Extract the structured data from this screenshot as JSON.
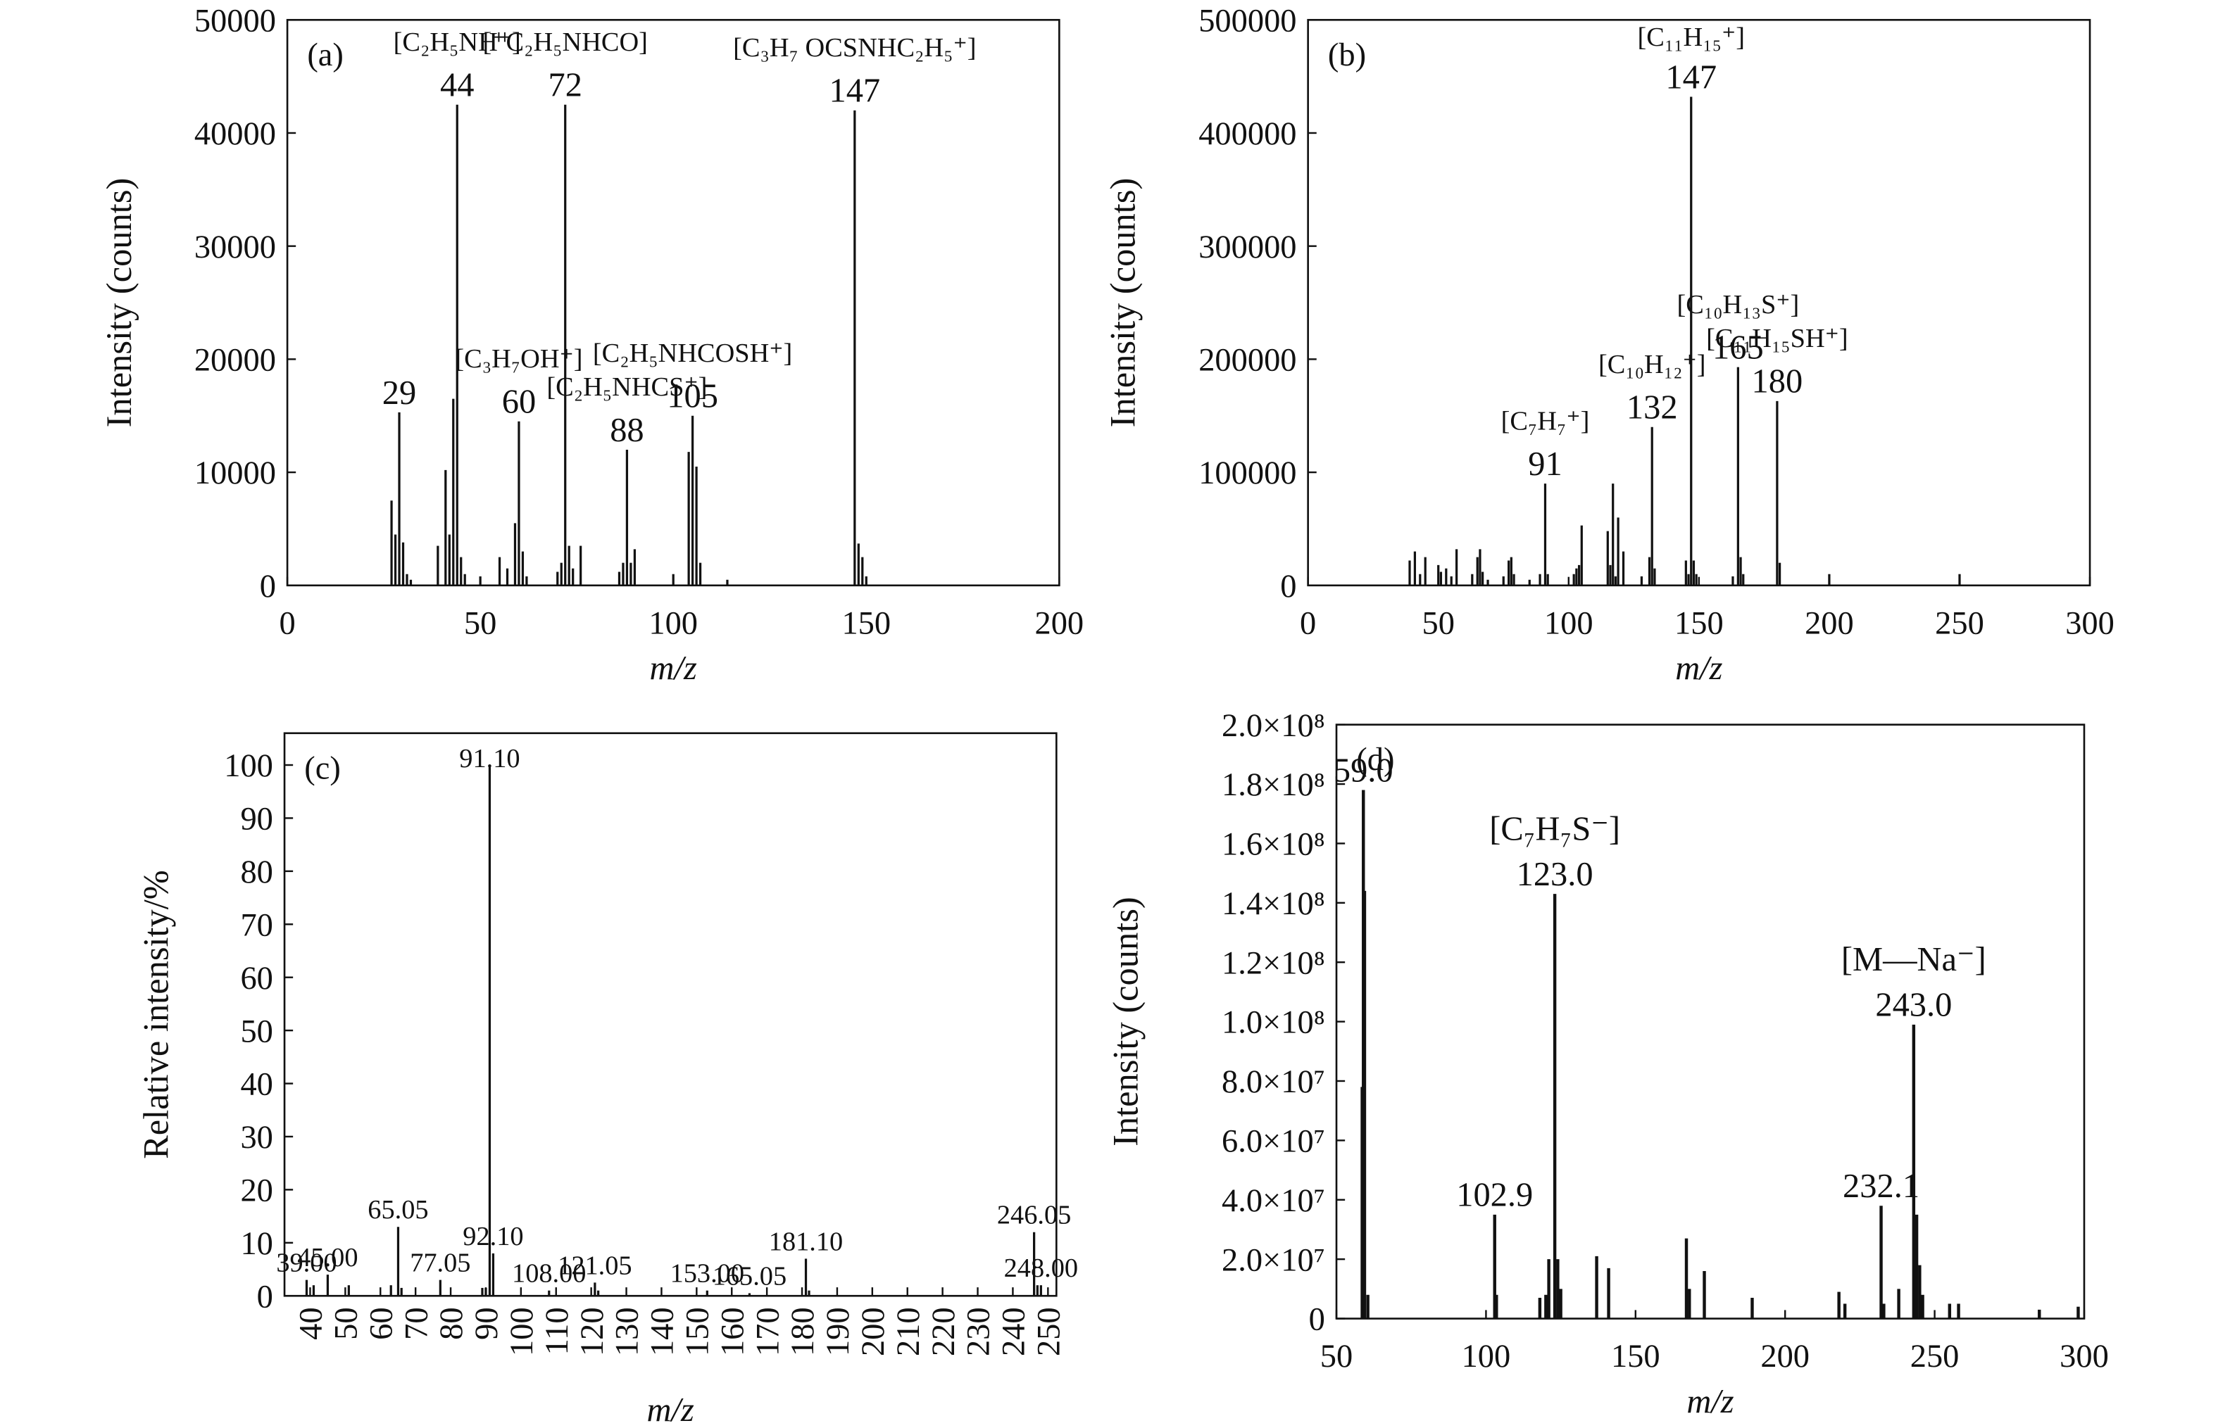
{
  "chart_data": [
    {
      "type": "bar",
      "panel": "(a)",
      "xlabel": "m/z",
      "ylabel": "Intensity (counts)",
      "xlim": [
        0,
        200
      ],
      "xticks": [
        0,
        50,
        100,
        150,
        200
      ],
      "ylim": [
        0,
        50000
      ],
      "yticks": [
        0,
        10000,
        20000,
        30000,
        40000,
        50000
      ],
      "color": "#111111",
      "x": [
        27,
        28,
        29,
        30,
        31,
        32,
        39,
        41,
        42,
        43,
        44,
        45,
        46,
        50,
        55,
        57,
        59,
        60,
        61,
        62,
        70,
        71,
        72,
        73,
        74,
        76,
        86,
        87,
        88,
        89,
        90,
        100,
        104,
        105,
        106,
        107,
        114,
        147,
        148,
        149,
        150
      ],
      "values": [
        7500,
        4500,
        15300,
        3800,
        1000,
        500,
        3500,
        10200,
        4500,
        16500,
        42500,
        2500,
        1000,
        800,
        2500,
        1500,
        5500,
        14500,
        3000,
        800,
        1200,
        2000,
        42500,
        3500,
        1500,
        3500,
        1200,
        2000,
        12000,
        2000,
        3200,
        1000,
        11800,
        15000,
        10500,
        2000,
        500,
        42000,
        3700,
        2500,
        800
      ],
      "annotations": [
        {
          "x": 29,
          "label": "29"
        },
        {
          "x": 44,
          "label": "44",
          "ion": "[C₂H₅NH⁺]"
        },
        {
          "x": 60,
          "label": "60",
          "ion": "[C₃H₇OH⁺]"
        },
        {
          "x": 72,
          "label": "72",
          "ion": "[⁺C₂H₅NHCO]"
        },
        {
          "x": 88,
          "label": "88",
          "ion": "[C₂H₅NHCS⁺]"
        },
        {
          "x": 105,
          "label": "105",
          "ion": "[C₂H₅NHCOSH⁺]"
        },
        {
          "x": 147,
          "label": "147",
          "ion": "[C₃H₇ OCSNHC₂H₅⁺]"
        }
      ]
    },
    {
      "type": "bar",
      "panel": "(b)",
      "xlabel": "m/z",
      "ylabel": "Intensity (counts)",
      "xlim": [
        0,
        300
      ],
      "xticks": [
        0,
        50,
        100,
        150,
        200,
        250,
        300
      ],
      "ylim": [
        0,
        500000
      ],
      "yticks": [
        0,
        100000,
        200000,
        300000,
        400000,
        500000
      ],
      "color": "#111111",
      "x": [
        39,
        41,
        43,
        45,
        50,
        51,
        53,
        55,
        57,
        63,
        65,
        66,
        67,
        69,
        75,
        77,
        78,
        79,
        85,
        89,
        91,
        92,
        102,
        103,
        104,
        105,
        115,
        116,
        117,
        118,
        119,
        121,
        128,
        131,
        132,
        133,
        145,
        146,
        147,
        148,
        149,
        163,
        165,
        166,
        167,
        180,
        181,
        200,
        250
      ],
      "values": [
        22000,
        30000,
        10000,
        25000,
        18000,
        12000,
        15000,
        8000,
        32000,
        10000,
        25000,
        32000,
        12000,
        5000,
        8000,
        22000,
        25000,
        10000,
        5000,
        10000,
        90000,
        10000,
        10000,
        15000,
        18000,
        53000,
        48000,
        18000,
        90000,
        8000,
        60000,
        30000,
        8000,
        25000,
        140000,
        15000,
        22000,
        10000,
        432000,
        22000,
        10000,
        8000,
        193000,
        25000,
        10000,
        163000,
        20000,
        10000,
        10000
      ],
      "annotations": [
        {
          "x": 91,
          "label": "91",
          "ion": "[C₇H₇⁺]"
        },
        {
          "x": 132,
          "label": "132",
          "ion": "[C₁₀H₁₂⁺]"
        },
        {
          "x": 147,
          "label": "147",
          "ion": "[C₁₁H₁₅⁺]"
        },
        {
          "x": 165,
          "label": "165",
          "ion": "[C₁₀H₁₃S⁺]"
        },
        {
          "x": 180,
          "label": "180",
          "ion": "[C₁₁H₁₅SH⁺]"
        }
      ]
    },
    {
      "type": "bar",
      "panel": "(c)",
      "xlabel": "m/z",
      "ylabel": "Relative intensity/%",
      "xlim": [
        32.7,
        252.4
      ],
      "xticks": [
        40,
        50,
        60,
        70,
        80,
        90,
        100,
        110,
        120,
        130,
        140,
        150,
        160,
        170,
        180,
        190,
        200,
        210,
        220,
        230,
        240,
        250
      ],
      "xtick_rotation": 90,
      "ylim": [
        0,
        106
      ],
      "yticks": [
        0,
        10,
        20,
        30,
        40,
        50,
        60,
        70,
        80,
        90,
        100
      ],
      "color": "#111111",
      "x": [
        39,
        41,
        45,
        51,
        63,
        65.05,
        66,
        77.05,
        89,
        90,
        91.1,
        92.1,
        108,
        121.05,
        122,
        153,
        165.05,
        181.1,
        182,
        246.05,
        247,
        248
      ],
      "values": [
        3,
        2,
        4,
        2,
        2,
        13,
        1.5,
        3,
        1.5,
        1.5,
        100,
        8,
        1,
        2.5,
        1,
        1,
        0.5,
        7,
        1,
        12,
        2,
        2
      ],
      "annotations": [
        {
          "x": 39,
          "label": "39.00"
        },
        {
          "x": 45,
          "label": "45.00"
        },
        {
          "x": 65.05,
          "label": "65.05"
        },
        {
          "x": 77.05,
          "label": "77.05"
        },
        {
          "x": 91.1,
          "label": "91.10"
        },
        {
          "x": 92.1,
          "label": "92.10"
        },
        {
          "x": 108,
          "label": "108.00"
        },
        {
          "x": 121.05,
          "label": "121.05"
        },
        {
          "x": 153,
          "label": "153.00"
        },
        {
          "x": 165.05,
          "label": "165.05"
        },
        {
          "x": 181.1,
          "label": "181.10"
        },
        {
          "x": 246.05,
          "label": "246.05"
        },
        {
          "x": 248,
          "label": "248.00"
        }
      ]
    },
    {
      "type": "bar",
      "panel": "(d)",
      "xlabel": "m/z",
      "ylabel": "Intensity (counts)",
      "xlim": [
        50,
        300
      ],
      "xticks": [
        50,
        100,
        150,
        200,
        250,
        300
      ],
      "ylim": [
        0,
        200000000
      ],
      "yticks": [
        0,
        {
          "value": 20000000,
          "label": "2.0×10⁷"
        },
        {
          "value": 40000000,
          "label": "4.0×10⁷"
        },
        {
          "value": 60000000,
          "label": "6.0×10⁷"
        },
        {
          "value": 80000000,
          "label": "8.0×10⁷"
        },
        {
          "value": 100000000,
          "label": "1.0×10⁸"
        },
        {
          "value": 120000000,
          "label": "1.2×10⁸"
        },
        {
          "value": 140000000,
          "label": "1.4×10⁸"
        },
        {
          "value": 160000000,
          "label": "1.6×10⁸"
        },
        {
          "value": 180000000,
          "label": "1.8×10⁸"
        },
        {
          "value": 200000000,
          "label": "2.0×10⁸"
        }
      ],
      "color": "#111111",
      "x": [
        58.6,
        59,
        59.4,
        60.5,
        102.9,
        103.5,
        118,
        120,
        121,
        123,
        124,
        125,
        137,
        141,
        167,
        168,
        173,
        189,
        218,
        220,
        232.1,
        233,
        238,
        243,
        244,
        245,
        246,
        255,
        258,
        285,
        298
      ],
      "values": [
        78000000,
        178000000,
        144000000,
        8000000,
        35000000,
        8000000,
        7000000,
        8000000,
        20000000,
        143000000,
        20000000,
        10000000,
        21000000,
        17000000,
        27000000,
        10000000,
        16000000,
        7000000,
        9000000,
        5000000,
        38000000,
        5000000,
        10000000,
        99000000,
        35000000,
        18000000,
        8000000,
        5000000,
        5000000,
        3000000,
        4000000
      ],
      "annotations": [
        {
          "x": 59,
          "label": "59.0"
        },
        {
          "x": 102.9,
          "label": "102.9"
        },
        {
          "x": 123,
          "label": "123.0",
          "ion": "[C₇H₇S⁻]"
        },
        {
          "x": 232.1,
          "label": "232.1"
        },
        {
          "x": 243,
          "label": "243.0",
          "ion": "[M—Na⁻]"
        }
      ]
    }
  ]
}
